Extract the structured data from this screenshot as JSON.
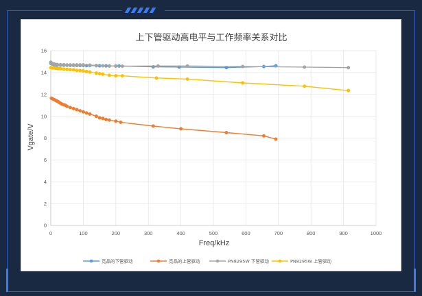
{
  "chart_data": {
    "type": "line",
    "title": "上下管驱动高电平与工作频率关系对比",
    "xlabel": "Freq/kHz",
    "ylabel": "Vgate/V",
    "xlim": [
      0,
      1000
    ],
    "ylim": [
      0,
      16
    ],
    "xticks": [
      0,
      100,
      200,
      300,
      400,
      500,
      600,
      700,
      800,
      900,
      1000
    ],
    "yticks": [
      0,
      2,
      4,
      6,
      8,
      10,
      12,
      14,
      16
    ],
    "grid": true,
    "legend": "bottom",
    "series": [
      {
        "name": "竞品的下管驱动",
        "color": "#5b9bd5",
        "points": [
          [
            0,
            14.85
          ],
          [
            5,
            14.78
          ],
          [
            10,
            14.72
          ],
          [
            15,
            14.7
          ],
          [
            20,
            14.68
          ],
          [
            30,
            14.68
          ],
          [
            40,
            14.67
          ],
          [
            50,
            14.67
          ],
          [
            60,
            14.66
          ],
          [
            70,
            14.66
          ],
          [
            80,
            14.65
          ],
          [
            90,
            14.65
          ],
          [
            100,
            14.65
          ],
          [
            110,
            14.64
          ],
          [
            120,
            14.64
          ],
          [
            140,
            14.63
          ],
          [
            150,
            14.62
          ],
          [
            170,
            14.61
          ],
          [
            180,
            14.6
          ],
          [
            200,
            14.6
          ],
          [
            210,
            14.6
          ],
          [
            315,
            14.52
          ],
          [
            395,
            14.5
          ],
          [
            540,
            14.45
          ],
          [
            655,
            14.55
          ],
          [
            692,
            14.62
          ]
        ]
      },
      {
        "name": "竞品的上管驱动",
        "color": "#ed7d31",
        "points": [
          [
            2,
            11.65
          ],
          [
            5,
            11.6
          ],
          [
            8,
            11.55
          ],
          [
            12,
            11.5
          ],
          [
            15,
            11.45
          ],
          [
            18,
            11.4
          ],
          [
            22,
            11.35
          ],
          [
            25,
            11.28
          ],
          [
            28,
            11.22
          ],
          [
            32,
            11.15
          ],
          [
            35,
            11.1
          ],
          [
            40,
            11.05
          ],
          [
            45,
            11.0
          ],
          [
            50,
            10.9
          ],
          [
            60,
            10.8
          ],
          [
            70,
            10.7
          ],
          [
            80,
            10.6
          ],
          [
            90,
            10.5
          ],
          [
            100,
            10.4
          ],
          [
            110,
            10.3
          ],
          [
            120,
            10.2
          ],
          [
            140,
            10.0
          ],
          [
            150,
            9.85
          ],
          [
            160,
            9.8
          ],
          [
            170,
            9.7
          ],
          [
            180,
            9.65
          ],
          [
            200,
            9.55
          ],
          [
            215,
            9.45
          ],
          [
            315,
            9.1
          ],
          [
            400,
            8.85
          ],
          [
            540,
            8.5
          ],
          [
            655,
            8.2
          ],
          [
            692,
            7.9
          ]
        ]
      },
      {
        "name": "PN8295W 下管驱动",
        "color": "#a5a5a5",
        "points": [
          [
            0,
            14.95
          ],
          [
            5,
            14.82
          ],
          [
            10,
            14.78
          ],
          [
            15,
            14.75
          ],
          [
            20,
            14.73
          ],
          [
            30,
            14.72
          ],
          [
            40,
            14.72
          ],
          [
            50,
            14.7
          ],
          [
            60,
            14.7
          ],
          [
            70,
            14.7
          ],
          [
            80,
            14.7
          ],
          [
            90,
            14.7
          ],
          [
            100,
            14.7
          ],
          [
            120,
            14.68
          ],
          [
            140,
            14.65
          ],
          [
            160,
            14.62
          ],
          [
            180,
            14.6
          ],
          [
            200,
            14.58
          ],
          [
            220,
            14.58
          ],
          [
            330,
            14.6
          ],
          [
            420,
            14.6
          ],
          [
            590,
            14.55
          ],
          [
            780,
            14.5
          ],
          [
            915,
            14.45
          ]
        ]
      },
      {
        "name": "PN8295W 上管驱动",
        "color": "#ffc000",
        "points": [
          [
            0,
            14.45
          ],
          [
            5,
            14.42
          ],
          [
            10,
            14.42
          ],
          [
            15,
            14.4
          ],
          [
            20,
            14.38
          ],
          [
            25,
            14.36
          ],
          [
            30,
            14.35
          ],
          [
            40,
            14.32
          ],
          [
            50,
            14.3
          ],
          [
            60,
            14.27
          ],
          [
            70,
            14.25
          ],
          [
            80,
            14.2
          ],
          [
            90,
            14.18
          ],
          [
            100,
            14.15
          ],
          [
            110,
            14.1
          ],
          [
            120,
            14.05
          ],
          [
            140,
            13.95
          ],
          [
            150,
            13.9
          ],
          [
            160,
            13.85
          ],
          [
            180,
            13.75
          ],
          [
            200,
            13.7
          ],
          [
            220,
            13.7
          ],
          [
            325,
            13.5
          ],
          [
            420,
            13.4
          ],
          [
            590,
            13.05
          ],
          [
            780,
            12.75
          ],
          [
            915,
            12.35
          ]
        ]
      }
    ]
  }
}
